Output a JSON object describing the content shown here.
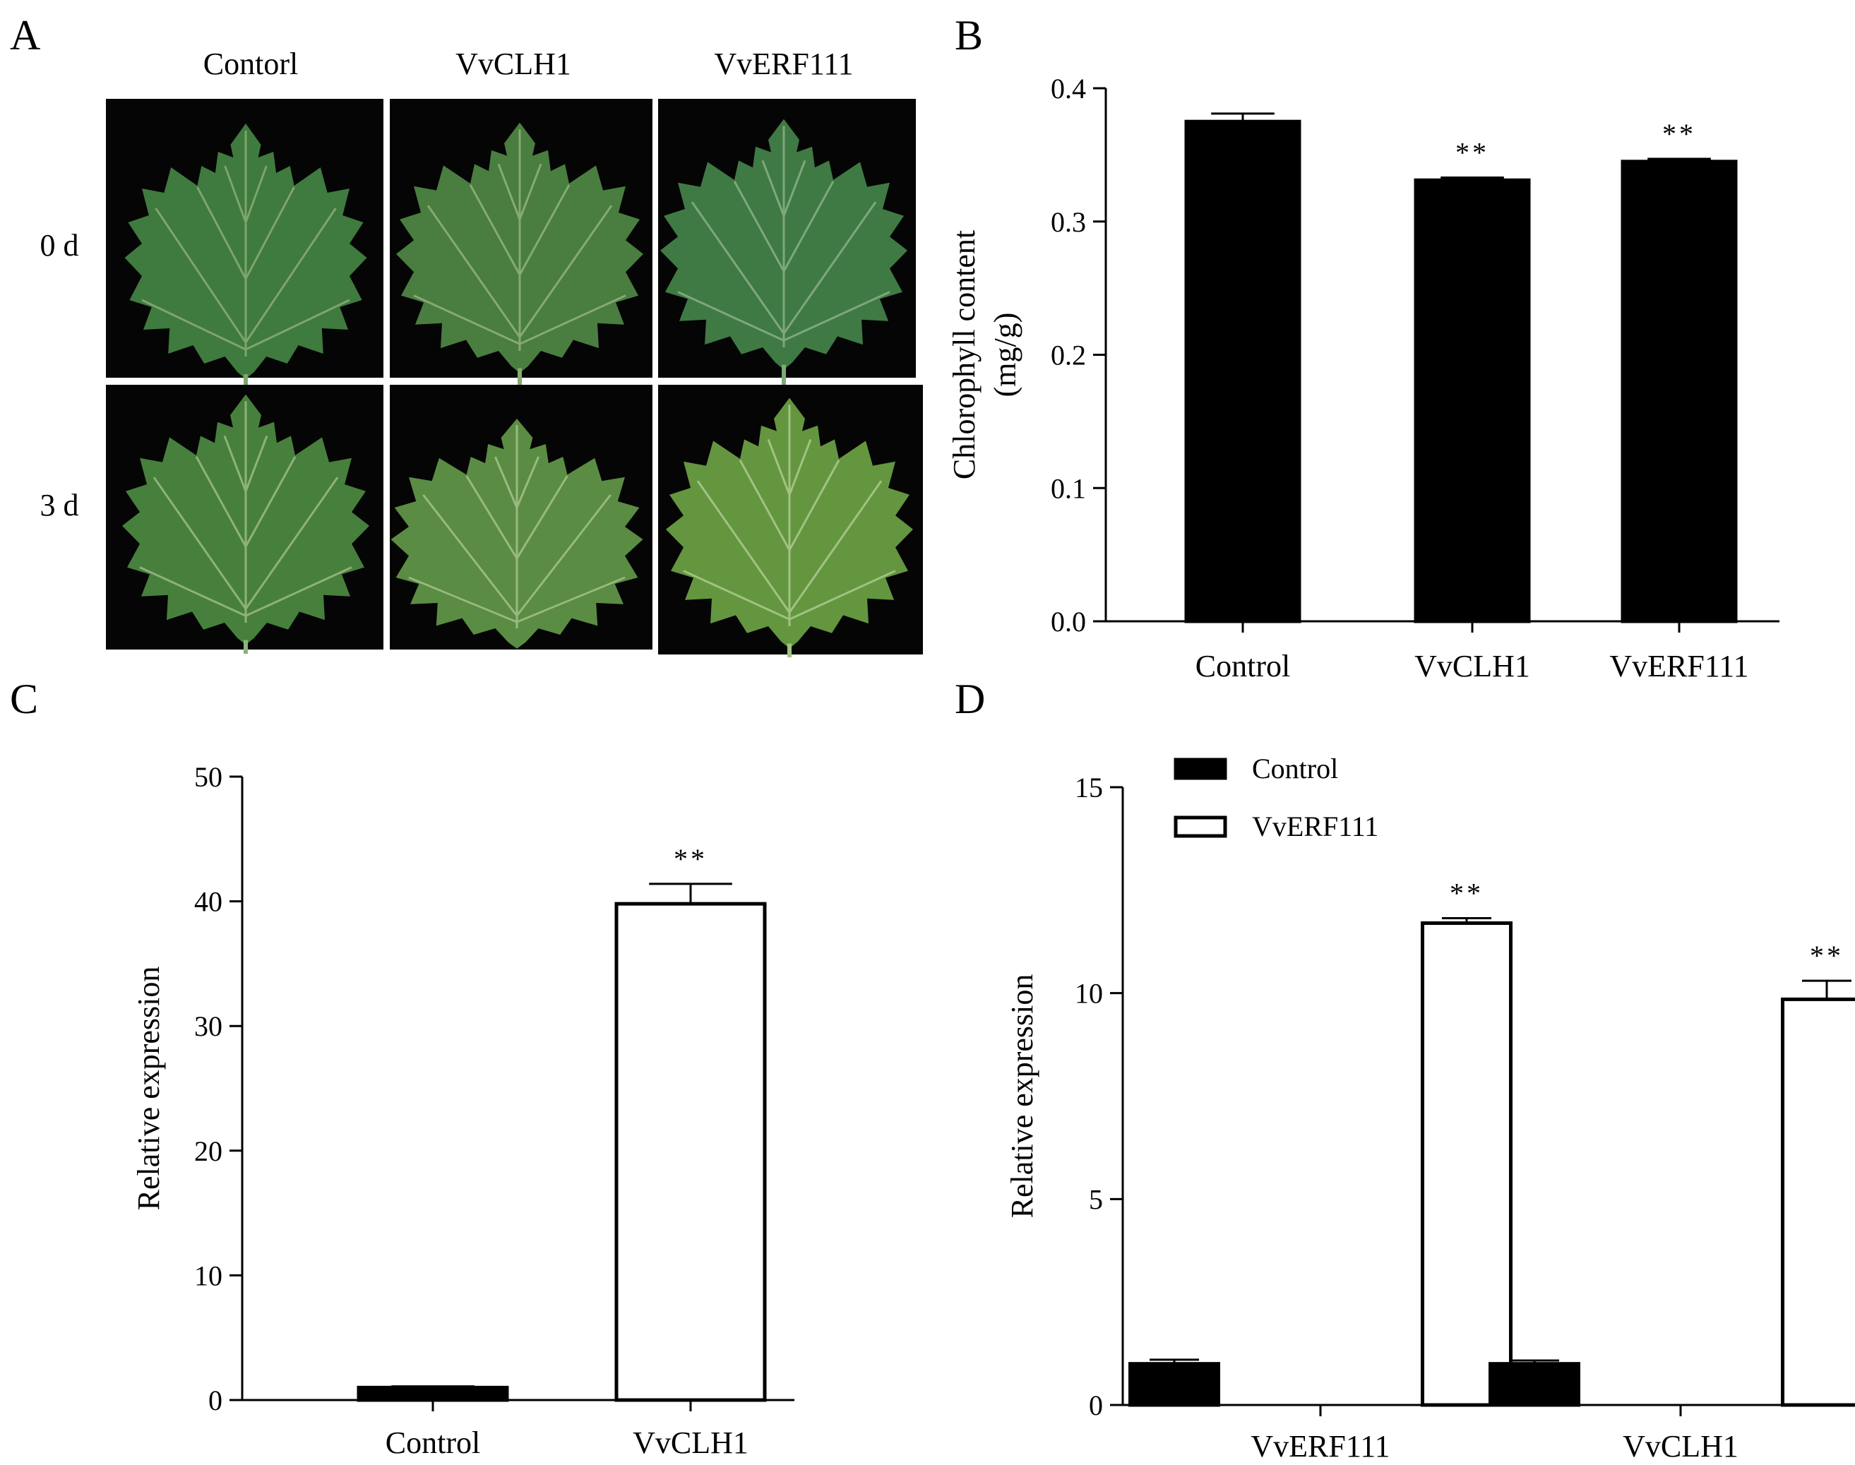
{
  "panel_a": {
    "letter": "A",
    "columns": [
      "Contorl",
      "VvCLH1",
      "VvERF111"
    ],
    "rows": [
      "0 d",
      "3 d"
    ],
    "photo_colors": {
      "background": "#050505",
      "leaf_day0": [
        "#3f7a3e",
        "#4a7d40",
        "#3f7a45"
      ],
      "leaf_day3": [
        "#47803d",
        "#5b8c43",
        "#64963f"
      ],
      "vein": "#8fb27a"
    }
  },
  "chart_data": [
    {
      "panel": "B",
      "type": "bar",
      "title": "",
      "xlabel": "",
      "ylabel_lines": [
        "Chlorophyll content",
        "(mg/g)"
      ],
      "categories": [
        "Control",
        "VvCLH1",
        "VvERF111"
      ],
      "series": [
        {
          "values": [
            0.375,
            0.331,
            0.345
          ],
          "errors": [
            0.006,
            0.002,
            0.002
          ],
          "fill": "#000000"
        }
      ],
      "significance": [
        "",
        "**",
        "**"
      ],
      "ylim": [
        0,
        0.4
      ],
      "yticks": [
        0.0,
        0.1,
        0.2,
        0.3,
        0.4
      ],
      "ytick_labels": [
        "0.0",
        "0.1",
        "0.2",
        "0.3",
        "0.4"
      ],
      "grid": false,
      "legend": "none"
    },
    {
      "panel": "C",
      "type": "bar",
      "title": "",
      "xlabel": "",
      "ylabel_lines": [
        "Relative expression"
      ],
      "categories": [
        "Control",
        "VvCLH1"
      ],
      "series": [
        {
          "values": [
            1.0,
            39.8
          ],
          "errors": [
            0.1,
            1.6
          ],
          "fills": [
            "#000000",
            "#ffffff"
          ]
        }
      ],
      "significance": [
        "",
        "**"
      ],
      "ylim": [
        0,
        50
      ],
      "yticks": [
        0,
        10,
        20,
        30,
        40,
        50
      ],
      "ytick_labels": [
        "0",
        "10",
        "20",
        "30",
        "40",
        "50"
      ],
      "grid": false,
      "legend": "none"
    },
    {
      "panel": "D",
      "type": "bar",
      "title": "",
      "xlabel": "",
      "ylabel_lines": [
        "Relative expression"
      ],
      "categories": [
        "VvERF111",
        "VvCLH1"
      ],
      "series": [
        {
          "name": "Control",
          "values": [
            1.0,
            1.0
          ],
          "errors": [
            0.1,
            0.08
          ],
          "fill": "#000000"
        },
        {
          "name": "VvERF111",
          "values": [
            11.7,
            9.85
          ],
          "errors": [
            0.12,
            0.45
          ],
          "fill": "#ffffff"
        }
      ],
      "significance": [
        [
          "",
          "**"
        ],
        [
          "",
          "**"
        ]
      ],
      "ylim": [
        0,
        15
      ],
      "yticks": [
        0,
        5,
        10,
        15
      ],
      "ytick_labels": [
        "0",
        "5",
        "10",
        "15"
      ],
      "grid": false,
      "legend": "top-left"
    }
  ]
}
